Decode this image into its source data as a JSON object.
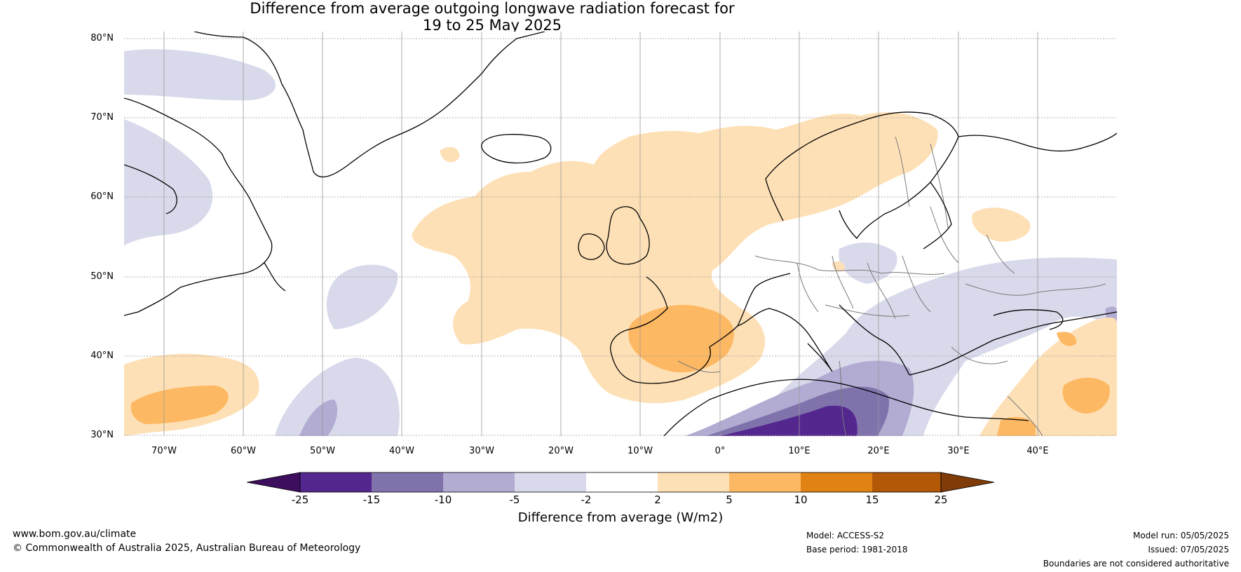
{
  "title": {
    "line1": "Difference from average outgoing longwave radiation forecast for",
    "line2": "19 to 25 May 2025"
  },
  "axes": {
    "lat_labels": [
      "80°N",
      "70°N",
      "60°N",
      "50°N",
      "40°N",
      "30°N"
    ],
    "lon_labels": [
      "70°W",
      "60°W",
      "50°W",
      "40°W",
      "30°W",
      "20°W",
      "10°W",
      "0°",
      "10°E",
      "20°E",
      "30°E",
      "40°E"
    ],
    "lat_range": [
      30,
      80.9
    ],
    "lon_range": [
      -75,
      50
    ]
  },
  "colorbar": {
    "label": "Difference from average (W/m2)",
    "ticks": [
      "-25",
      "-15",
      "-10",
      "-5",
      "-2",
      "2",
      "5",
      "10",
      "15",
      "25"
    ],
    "colors": [
      "#3d0d5e",
      "#54278f",
      "#8073ac",
      "#b2abd2",
      "#d8daeb",
      "#ffffff",
      "#fee0b6",
      "#fdb863",
      "#e08214",
      "#b35806",
      "#7f3b08"
    ]
  },
  "footer": {
    "website": "www.bom.gov.au/climate",
    "copyright": "© Commonwealth of Australia 2025, Australian Bureau of Meteorology",
    "model": "Model: ACCESS-S2",
    "base_period": "Base period: 1981-2018",
    "model_run": "Model run: 05/05/2025",
    "issued": "Issued: 07/05/2025",
    "disclaimer": "Boundaries are not considered authoritative"
  }
}
